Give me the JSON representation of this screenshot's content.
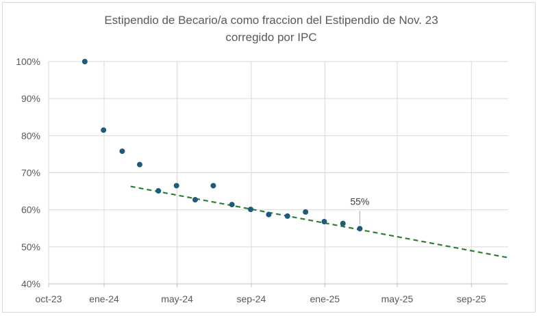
{
  "chart_data": {
    "type": "scatter",
    "title_lines": [
      "Estipendio de Becario/a como fraccion del  Estipendio de Nov. 23",
      "corregido por IPC"
    ],
    "xlabel": "",
    "ylabel": "",
    "x_ticks": [
      "oct-23",
      "ene-24",
      "may-24",
      "sep-24",
      "ene-25",
      "may-25",
      "sep-25"
    ],
    "x_tick_dates": [
      "2023-10-01",
      "2024-01-01",
      "2024-05-01",
      "2024-09-01",
      "2025-01-01",
      "2025-05-01",
      "2025-09-01"
    ],
    "xlim": [
      "2023-10-01",
      "2025-11-01"
    ],
    "y_ticks": [
      "40%",
      "50%",
      "60%",
      "70%",
      "80%",
      "90%",
      "100%"
    ],
    "ylim": [
      0.4,
      1.0
    ],
    "grid": true,
    "legend": "none",
    "series": [
      {
        "x": [
          "2023-11-30",
          "2023-12-31",
          "2024-01-31",
          "2024-02-29",
          "2024-03-31",
          "2024-04-30",
          "2024-05-31",
          "2024-06-30",
          "2024-07-31",
          "2024-08-31",
          "2024-09-30",
          "2024-10-31",
          "2024-11-30",
          "2024-12-31",
          "2025-01-31",
          "2025-02-28"
        ],
        "y": [
          1.0,
          0.815,
          0.758,
          0.722,
          0.651,
          0.665,
          0.627,
          0.665,
          0.614,
          0.601,
          0.587,
          0.583,
          0.594,
          0.568,
          0.563,
          0.549
        ],
        "color": "#1f5a78"
      }
    ],
    "trendline": {
      "type": "linear",
      "style": "dashed",
      "color": "#2e7d32",
      "start": {
        "x": "2024-02-14",
        "y": 0.663
      },
      "end": {
        "x": "2025-10-31",
        "y": 0.471
      }
    },
    "annotations": [
      {
        "text": "55%",
        "x": "2025-02-28",
        "y": 0.549
      }
    ]
  }
}
